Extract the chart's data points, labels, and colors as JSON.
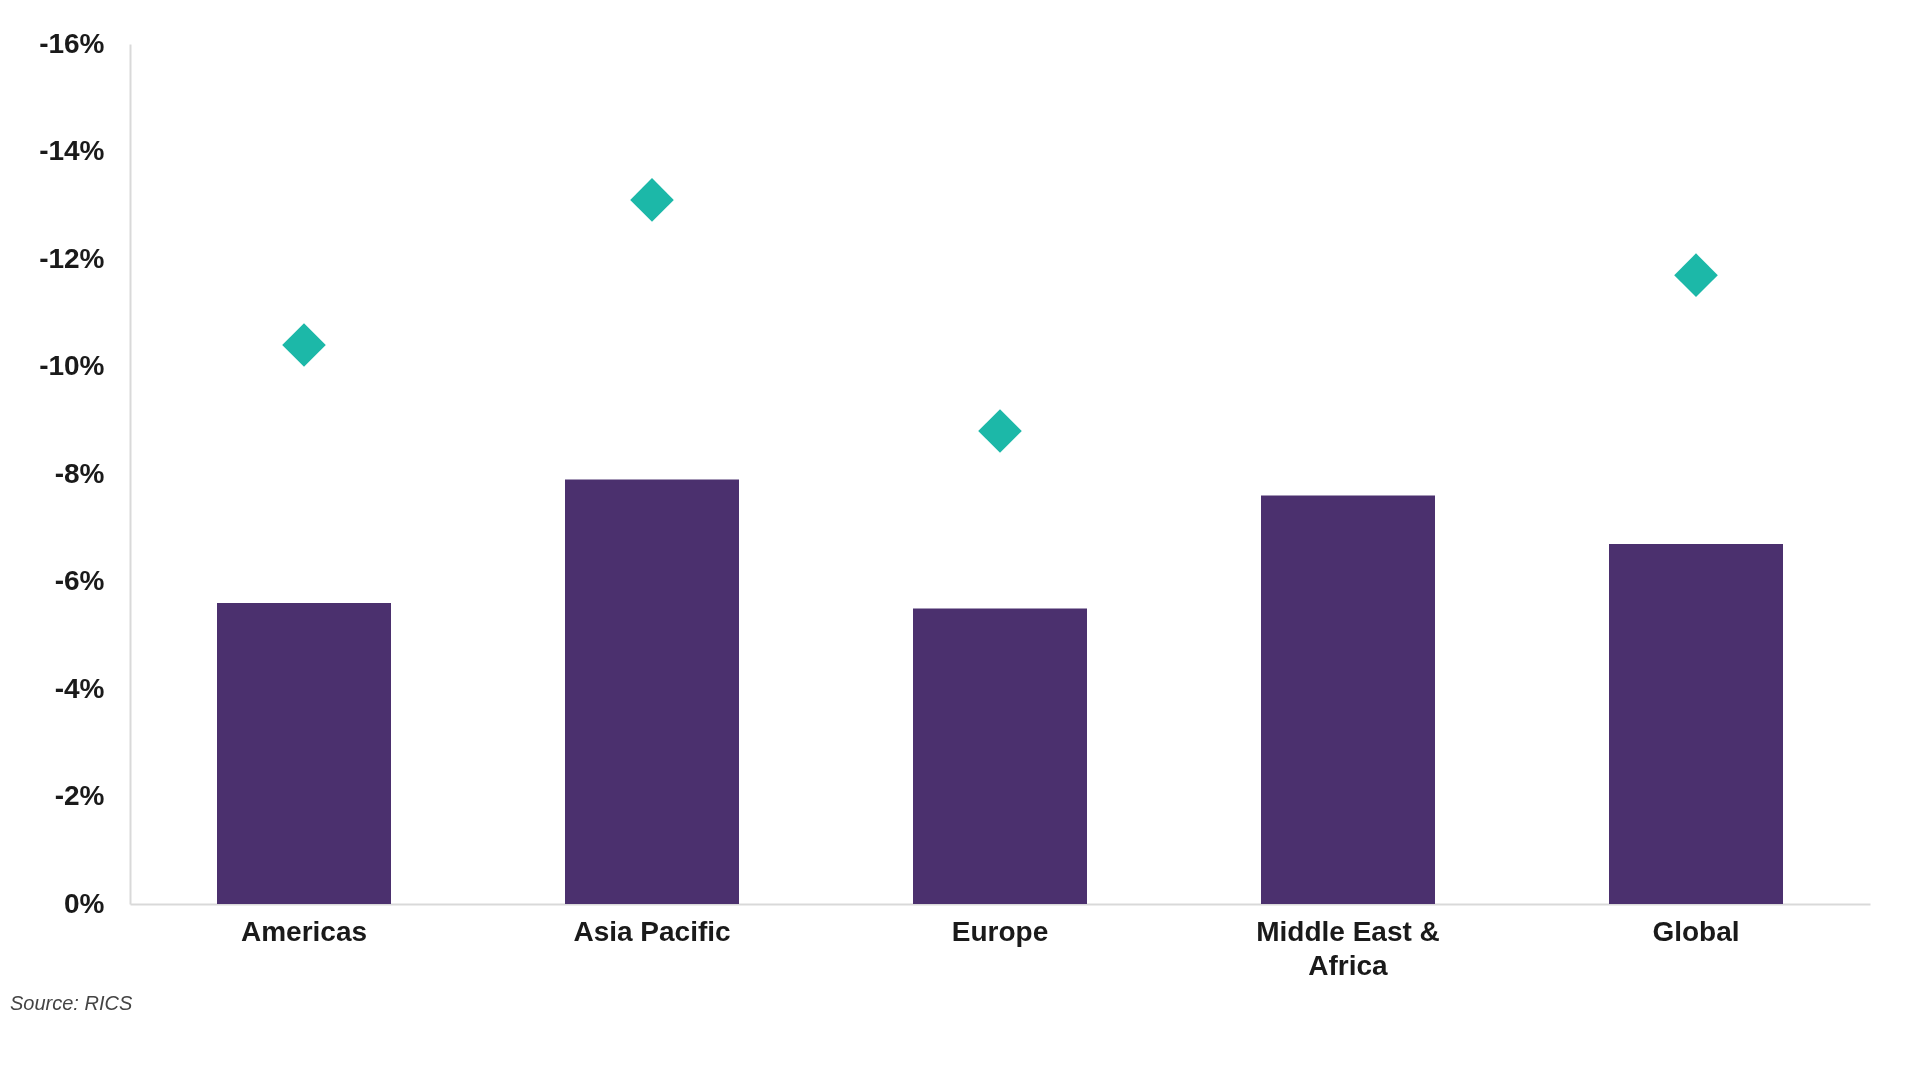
{
  "chart_data": {
    "type": "bar",
    "categories": [
      "Americas",
      "Asia Pacific",
      "Europe",
      "Middle East & Africa",
      "Global"
    ],
    "series": [
      {
        "color": "#4b306e",
        "values": [
          -5.6,
          -7.9,
          -5.5,
          -7.6,
          -6.7
        ]
      },
      {
        "type": "scatter",
        "color": "#1cb8a8",
        "values": [
          -10.4,
          -13.1,
          -8.8,
          null,
          -11.7
        ]
      }
    ],
    "marker": "diamond",
    "ylim": [
      0,
      -16
    ],
    "yticks": [
      {
        "value": 0,
        "label": "0%"
      },
      {
        "value": -2,
        "label": "-2%"
      },
      {
        "value": -4,
        "label": "-4%"
      },
      {
        "value": -6,
        "label": "-6%"
      },
      {
        "value": -8,
        "label": "-8%"
      },
      {
        "value": -10,
        "label": "-10%"
      },
      {
        "value": -12,
        "label": "-12%"
      },
      {
        "value": -14,
        "label": "-14%"
      },
      {
        "value": -16,
        "label": "-16%"
      }
    ],
    "annotations": [
      "Source: RICS"
    ]
  }
}
